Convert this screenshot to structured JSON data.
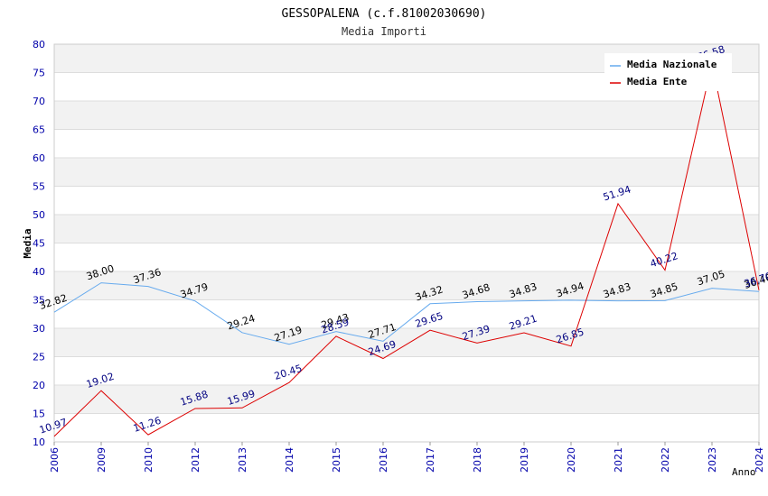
{
  "chart_data": {
    "type": "line",
    "title": "GESSOPALENA (c.f.81002030690)",
    "subtitle": "Media Importi",
    "xlabel": "Anno",
    "ylabel": "Media",
    "ylim": [
      10,
      80
    ],
    "yticks": [
      "10",
      "15",
      "20",
      "25",
      "30",
      "35",
      "40",
      "45",
      "50",
      "55",
      "60",
      "65",
      "70",
      "75",
      "80"
    ],
    "categories": [
      "2006",
      "2009",
      "2010",
      "2012",
      "2013",
      "2014",
      "2015",
      "2016",
      "2017",
      "2018",
      "2019",
      "2020",
      "2021",
      "2022",
      "2023",
      "2024"
    ],
    "grid": true,
    "legend_position": "top-right",
    "series": [
      {
        "name": "Media Nazionale",
        "color": "#66aaee",
        "label_color": "#000000",
        "values": [
          32.82,
          38.0,
          37.36,
          34.79,
          29.24,
          27.19,
          29.43,
          27.71,
          34.32,
          34.68,
          34.83,
          34.94,
          34.83,
          34.85,
          37.05,
          36.46
        ],
        "labels": [
          "32.82",
          "38.00",
          "37.36",
          "34.79",
          "29.24",
          "27.19",
          "29.43",
          "27.71",
          "34.32",
          "34.68",
          "34.83",
          "34.94",
          "34.83",
          "34.85",
          "37.05",
          "36.46"
        ]
      },
      {
        "name": "Media Ente",
        "color": "#dd0000",
        "label_color": "#000080",
        "values": [
          10.97,
          19.02,
          11.26,
          15.88,
          15.99,
          20.45,
          28.59,
          24.69,
          29.65,
          27.39,
          29.21,
          26.85,
          51.94,
          40.22,
          76.58,
          36.7
        ],
        "labels": [
          "10.97",
          "19.02",
          "11.26",
          "15.88",
          "15.99",
          "20.45",
          "28.59",
          "24.69",
          "29.65",
          "27.39",
          "29.21",
          "26.85",
          "51.94",
          "40.22",
          "76.58",
          "36.70"
        ]
      }
    ]
  }
}
